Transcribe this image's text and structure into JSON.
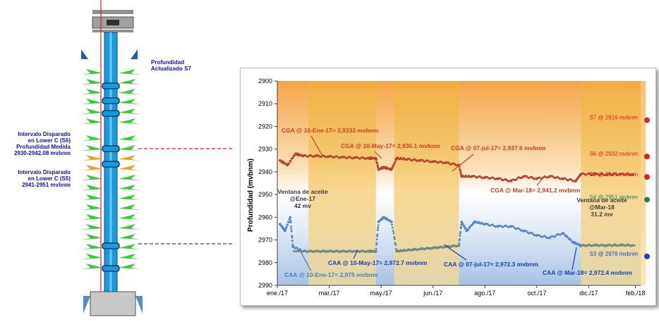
{
  "well_diagram": {
    "labels": [
      {
        "id": "top",
        "lines": [
          "Profundidad",
          "Actualizado S7"
        ]
      },
      {
        "id": "s6",
        "lines": [
          "Intervalo Disparado",
          "en Lower C (S6)",
          "Profundidad Medida",
          "2930-2942.08 mvbnm"
        ]
      },
      {
        "id": "s5",
        "lines": [
          "Intervalo Disparado",
          "en Lower C (S5)",
          "2941-2951 mvbnm"
        ]
      }
    ]
  },
  "chart_data": {
    "type": "scatter",
    "xlabel": "",
    "ylabel": "Profundidad  (mvbnm)",
    "ylim": [
      2990,
      2900
    ],
    "yticks": [
      "2900",
      "2910",
      "2920",
      "2930",
      "2940",
      "2950",
      "2960",
      "2970",
      "2980",
      "2990"
    ],
    "xticks": [
      "ene./17",
      "mar./17",
      "may./17",
      "jun./17",
      "ago./17",
      "oct./17",
      "dic./17",
      "feb./18"
    ],
    "x_range_months": [
      0,
      14
    ],
    "grid": false,
    "windows": [
      {
        "label": "Ventana de aceite @Ene-17 42 mv",
        "x_start_month": 1.2,
        "x_end_month": 3.8
      },
      {
        "label": "",
        "x_start_month": 4.5,
        "x_end_month": 7.0
      },
      {
        "label": "Ventana de aceite @Mar-18 31.2 mv",
        "x_start_month": 11.7,
        "x_end_month": 14.2
      }
    ],
    "series": [
      {
        "name": "CGA",
        "color": "#c0392b",
        "points": [
          [
            0.1,
            2935
          ],
          [
            0.4,
            2937
          ],
          [
            0.7,
            2932
          ],
          [
            1.0,
            2933
          ],
          [
            1.5,
            2933
          ],
          [
            2.0,
            2933.3
          ],
          [
            2.5,
            2933.6
          ],
          [
            3.0,
            2933.8
          ],
          [
            3.5,
            2934
          ],
          [
            3.8,
            2934
          ],
          [
            3.9,
            2939
          ],
          [
            4.1,
            2938
          ],
          [
            4.4,
            2939
          ],
          [
            4.6,
            2934
          ],
          [
            5.0,
            2934.5
          ],
          [
            5.5,
            2935
          ],
          [
            6.0,
            2935.5
          ],
          [
            6.5,
            2936
          ],
          [
            7.0,
            2937
          ],
          [
            7.1,
            2942
          ],
          [
            7.5,
            2942
          ],
          [
            8.0,
            2942.5
          ],
          [
            8.5,
            2943
          ],
          [
            9.0,
            2944
          ],
          [
            9.5,
            2942
          ],
          [
            10.0,
            2943
          ],
          [
            10.5,
            2942
          ],
          [
            11.0,
            2943
          ],
          [
            11.5,
            2944
          ],
          [
            11.7,
            2941
          ],
          [
            12.2,
            2941
          ],
          [
            12.7,
            2941.2
          ],
          [
            13.2,
            2941
          ],
          [
            13.7,
            2941.2
          ]
        ]
      },
      {
        "name": "CAA",
        "color": "#4a7fc1",
        "points": [
          [
            0.1,
            2963
          ],
          [
            0.3,
            2966
          ],
          [
            0.5,
            2960
          ],
          [
            0.6,
            2973
          ],
          [
            1.0,
            2975
          ],
          [
            1.5,
            2975
          ],
          [
            2.0,
            2975
          ],
          [
            2.5,
            2975
          ],
          [
            3.0,
            2975
          ],
          [
            3.5,
            2975
          ],
          [
            3.8,
            2975
          ],
          [
            3.9,
            2962
          ],
          [
            4.1,
            2960
          ],
          [
            4.4,
            2962
          ],
          [
            4.6,
            2975
          ],
          [
            5.0,
            2974.5
          ],
          [
            5.5,
            2974
          ],
          [
            6.0,
            2973.5
          ],
          [
            6.5,
            2973
          ],
          [
            7.0,
            2972.5
          ],
          [
            7.1,
            2962
          ],
          [
            7.3,
            2966
          ],
          [
            7.6,
            2962
          ],
          [
            8.0,
            2963
          ],
          [
            8.5,
            2964
          ],
          [
            9.0,
            2964
          ],
          [
            9.5,
            2966
          ],
          [
            10.0,
            2968
          ],
          [
            10.5,
            2969
          ],
          [
            11.0,
            2967
          ],
          [
            11.4,
            2971
          ],
          [
            11.7,
            2972.5
          ],
          [
            12.2,
            2972.3
          ],
          [
            12.7,
            2972.4
          ],
          [
            13.2,
            2972.2
          ],
          [
            13.7,
            2972.4
          ]
        ]
      }
    ],
    "annotations": [
      {
        "text": "CGA @ 10-Ene-17= 2,9333 mvbnm",
        "color": "#d04020"
      },
      {
        "text": "CGA @ 10-May-17= 2,936.1 mvbnm",
        "color": "#d04020"
      },
      {
        "text": "CGA @ 07-jul-17= 2,937.6 mvbnm",
        "color": "#d04020"
      },
      {
        "text": "CGA @ Mar-18= 2,941.2 mvbnm",
        "color": "#d04020"
      },
      {
        "text": "CAA @ 10-Ene-17= 2,975 mvbnm",
        "color": "#4a7fc1"
      },
      {
        "text": "CAA @ 10-May-17= 2,972.7 mvbnm",
        "color": "#1a3fb0"
      },
      {
        "text": "CAA @ 07-jul-17= 2,972.3 mvbnm",
        "color": "#1a3fb0"
      },
      {
        "text": "CAA @ Mar-18= 2,972.4 mvbnm",
        "color": "#1a3fb0"
      }
    ],
    "window_labels": [
      {
        "lines": [
          "Ventana de aceite",
          "@Ene-17",
          "42 mv"
        ]
      },
      {
        "lines": [
          "Ventana de aceite",
          "@Mar-18",
          "31.2 mv"
        ]
      }
    ],
    "sensors": [
      {
        "label": "S7 @ 2916  mvbnm",
        "depth": 2916,
        "color": "#e02020"
      },
      {
        "label": "S6 @ 2932  mvbnm",
        "depth": 2932,
        "color": "#e02020"
      },
      {
        "label": "S5 @ 2941  mvbnm",
        "depth": 2941,
        "color": "#e02020"
      },
      {
        "label": "S4 @ 2951  mvbnm",
        "depth": 2951,
        "color": "#1e8a3a"
      },
      {
        "label": "S3 @ 2976  mvbnm",
        "depth": 2976,
        "color": "#1a3fd0"
      }
    ]
  },
  "colors": {
    "orange_top": "#f5b04a",
    "blue_bottom": "#aac4e6",
    "window_fill": "#f0cc70",
    "cga": "#b5452c",
    "caa": "#5b89c4",
    "contact_line": "#7a8a6a"
  }
}
